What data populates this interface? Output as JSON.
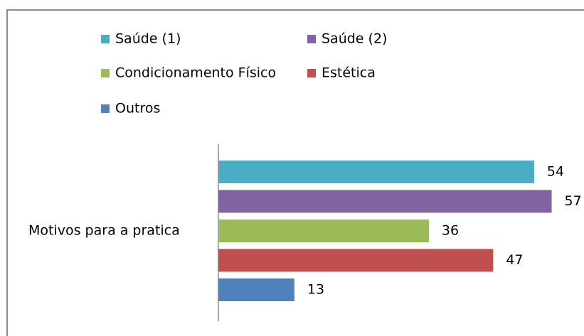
{
  "chart_data": {
    "type": "bar",
    "orientation": "horizontal",
    "categories": [
      "Motivos para a pratica"
    ],
    "series": [
      {
        "name": "Saúde (1)",
        "color": "#4bacc6",
        "values": [
          54
        ]
      },
      {
        "name": "Saúde (2)",
        "color": "#8064a2",
        "values": [
          57
        ]
      },
      {
        "name": "Condicionamento Físico",
        "color": "#9bbb59",
        "values": [
          36
        ]
      },
      {
        "name": "Estética",
        "color": "#c0504d",
        "values": [
          47
        ]
      },
      {
        "name": "Outros",
        "color": "#4f81bd",
        "values": [
          13
        ]
      }
    ],
    "legend": "top",
    "data_labels": true
  }
}
